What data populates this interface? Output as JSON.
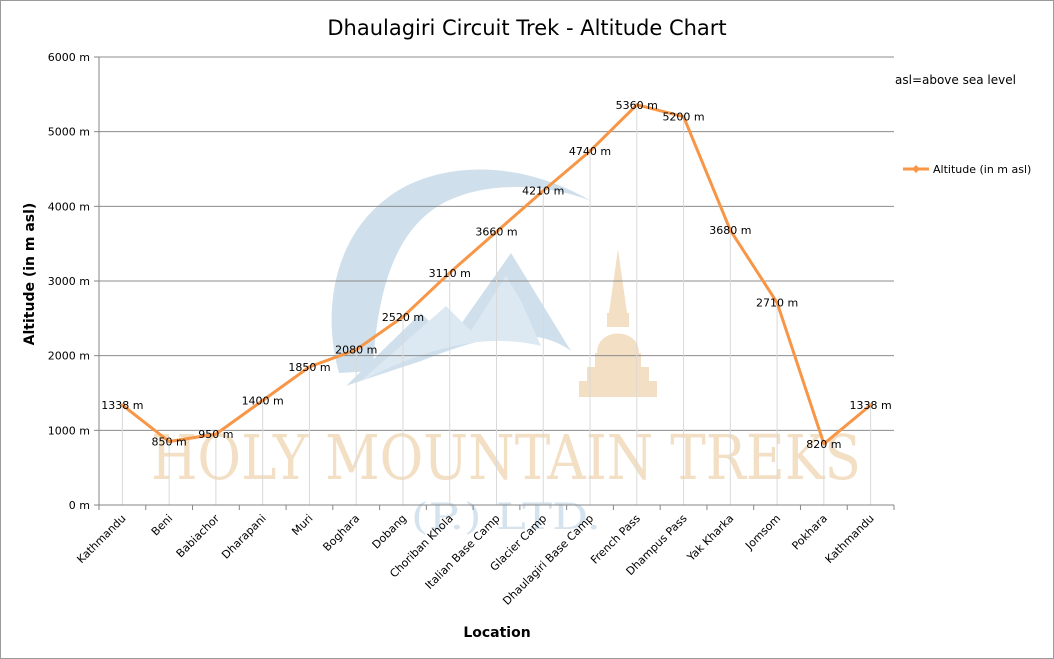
{
  "chart_data": {
    "type": "line",
    "title": "Dhaulagiri Circuit Trek - Altitude Chart",
    "xlabel": "Location",
    "ylabel": "Altitude (in m asl)",
    "ylim": [
      0,
      6000
    ],
    "y_ticks": [
      "0 m",
      "1000 m",
      "2000 m",
      "3000 m",
      "4000 m",
      "5000 m",
      "6000 m"
    ],
    "categories": [
      "Kathmandu",
      "Beni",
      "Babiachor",
      "Dharapani",
      "Muri",
      "Boghara",
      "Dobang",
      "Choriban Khola",
      "Italian Base Camp",
      "Glacier Camp",
      "Dhaulagiri Base Camp",
      "French Pass",
      "Dhampus Pass",
      "Yak Kharka",
      "Jomsom",
      "Pokhara",
      "Kathmandu"
    ],
    "series": [
      {
        "name": "Altitude (in  m asl)",
        "values": [
          1338,
          850,
          950,
          1400,
          1850,
          2080,
          2520,
          3110,
          3660,
          4210,
          4740,
          5360,
          5200,
          3680,
          2710,
          820,
          1338
        ],
        "data_labels": [
          "1338 m",
          "850 m",
          "950 m",
          "1400 m",
          "1850 m",
          "2080 m",
          "2520 m",
          "3110 m",
          "3660 m",
          "4210 m",
          "4740 m",
          "5360 m",
          "5200 m",
          "3680 m",
          "2710 m",
          "820 m",
          "1338 m"
        ],
        "color": "#f79646"
      }
    ],
    "grid": "horizontal major gridlines, vertical drop lines",
    "legend": "right",
    "note": "asl=above sea level"
  },
  "watermark": {
    "line1": "HOLY MOUNTAIN TREKS",
    "line2": "(P.) LTD."
  },
  "colors": {
    "series": "#f79646",
    "gridline": "#8c8c8c",
    "dropline": "#d9d9d9",
    "watermark_blue": "#cfe0ec",
    "watermark_gold": "#f2dfc4"
  }
}
